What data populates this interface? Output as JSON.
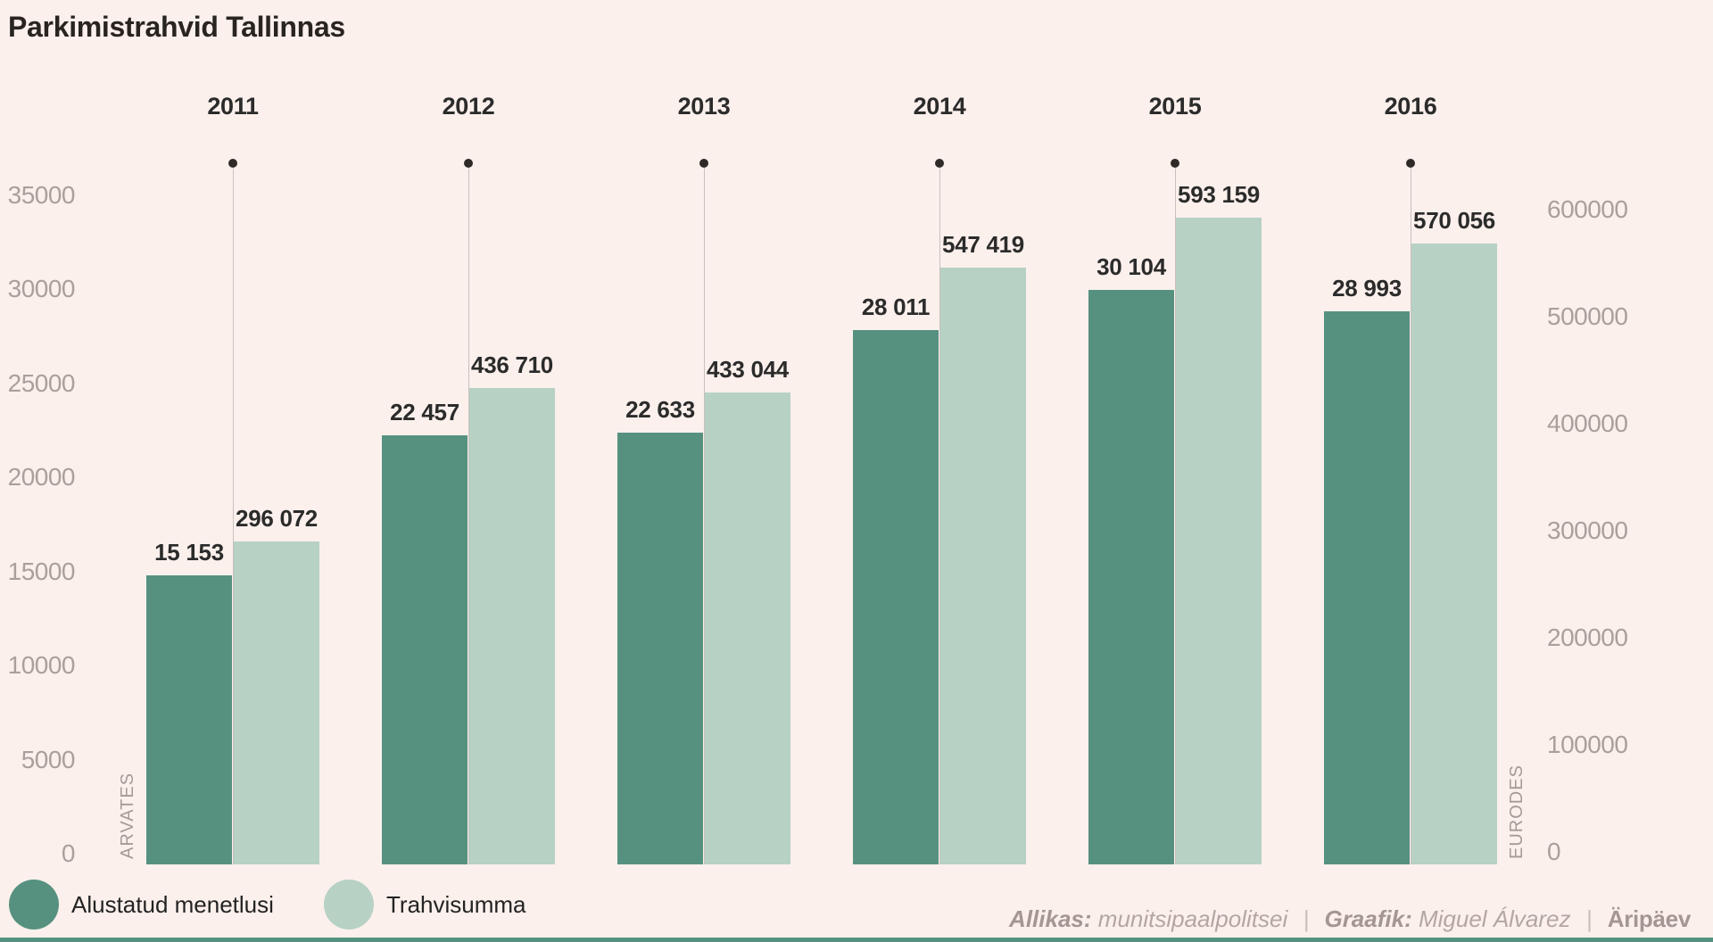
{
  "title": "Parkimistrahvid Tallinnas",
  "chart_data": {
    "type": "bar",
    "title": "Parkimistrahvid Tallinnas",
    "categories": [
      "2011",
      "2012",
      "2013",
      "2014",
      "2015",
      "2016"
    ],
    "series": [
      {
        "name": "Alustatud menetlusi",
        "axis": "left",
        "color": "#569180",
        "values": [
          15153,
          22457,
          22633,
          28011,
          30104,
          28993
        ]
      },
      {
        "name": "Trahvisumma",
        "axis": "right",
        "color": "#b7d1c5",
        "values": [
          296072,
          436710,
          433044,
          547419,
          593159,
          570056
        ]
      }
    ],
    "value_labels": [
      [
        "15 153",
        "22 457",
        "22 633",
        "28 011",
        "30 104",
        "28 993"
      ],
      [
        "296 072",
        "436 710",
        "433 044",
        "547 419",
        "593 159",
        "570 056"
      ]
    ],
    "left_axis": {
      "label": "ARVATES",
      "ticks": [
        35000,
        30000,
        25000,
        20000,
        15000,
        10000,
        5000,
        0
      ],
      "min": 0,
      "max": 35000
    },
    "right_axis": {
      "label": "EURODES",
      "ticks": [
        600000,
        500000,
        400000,
        300000,
        200000,
        100000,
        0
      ],
      "min": 0,
      "max": 600000
    },
    "grid": false,
    "legend_position": "bottom-left"
  },
  "legend": {
    "items": [
      {
        "label": "Alustatud menetlusi",
        "color": "#569180"
      },
      {
        "label": "Trahvisumma",
        "color": "#b7d1c5"
      }
    ]
  },
  "footer": {
    "source_label": "Allikas:",
    "source_value": "munitsipaalpolitsei",
    "separator": "|",
    "credit_label": "Graafik:",
    "credit_value": "Miguel Álvarez",
    "brand": "Äripäev"
  },
  "colors": {
    "background": "#fbf0ec",
    "bar_dark": "#569180",
    "bar_light": "#b7d1c5",
    "text_dark": "#2b2b2b",
    "tick_gray": "#a9a09c",
    "marker_line": "#c8c1be",
    "bottom_strip": "#569180"
  }
}
